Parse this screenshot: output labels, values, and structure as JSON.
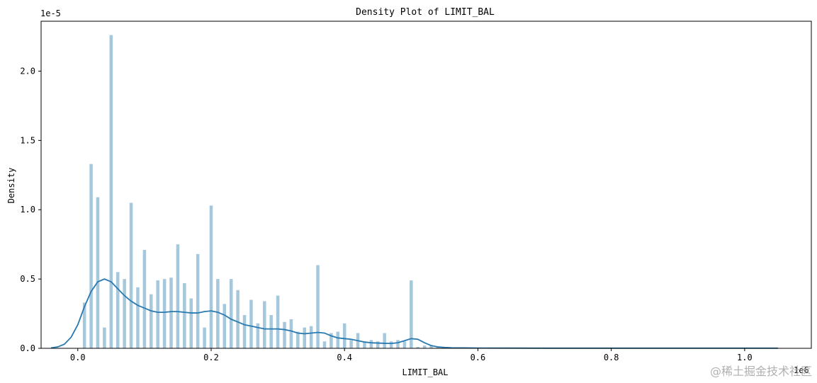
{
  "chart_data": {
    "type": "bar",
    "title": "Density Plot of LIMIT_BAL",
    "xlabel": "LIMIT_BAL",
    "ylabel": "Density",
    "x_scale_label": "1e6",
    "y_scale_label": "1e-5",
    "xlim": [
      -0.055,
      1.1
    ],
    "ylim": [
      0,
      2.36
    ],
    "xticks": [
      0.0,
      0.2,
      0.4,
      0.6,
      0.8,
      1.0
    ],
    "xtick_labels": [
      "0.0",
      "0.2",
      "0.4",
      "0.6",
      "0.8",
      "1.0"
    ],
    "yticks": [
      0.0,
      0.5,
      1.0,
      1.5,
      2.0
    ],
    "ytick_labels": [
      "0.0",
      "0.5",
      "1.0",
      "1.5",
      "2.0"
    ],
    "grid": false,
    "legend": "none",
    "bar_color": "#a6c8dc",
    "line_color": "#2a7ab0",
    "histogram": {
      "bin_width": 0.0048,
      "bins": [
        [
          0.01,
          0.33
        ],
        [
          0.02,
          1.33
        ],
        [
          0.03,
          1.09
        ],
        [
          0.04,
          0.15
        ],
        [
          0.05,
          2.26
        ],
        [
          0.06,
          0.55
        ],
        [
          0.07,
          0.5
        ],
        [
          0.08,
          1.05
        ],
        [
          0.09,
          0.44
        ],
        [
          0.1,
          0.71
        ],
        [
          0.11,
          0.39
        ],
        [
          0.12,
          0.49
        ],
        [
          0.13,
          0.5
        ],
        [
          0.14,
          0.51
        ],
        [
          0.15,
          0.75
        ],
        [
          0.16,
          0.47
        ],
        [
          0.17,
          0.36
        ],
        [
          0.18,
          0.68
        ],
        [
          0.19,
          0.15
        ],
        [
          0.2,
          1.03
        ],
        [
          0.21,
          0.5
        ],
        [
          0.22,
          0.32
        ],
        [
          0.23,
          0.5
        ],
        [
          0.24,
          0.42
        ],
        [
          0.25,
          0.24
        ],
        [
          0.26,
          0.35
        ],
        [
          0.27,
          0.18
        ],
        [
          0.28,
          0.34
        ],
        [
          0.29,
          0.24
        ],
        [
          0.3,
          0.38
        ],
        [
          0.31,
          0.19
        ],
        [
          0.32,
          0.21
        ],
        [
          0.33,
          0.12
        ],
        [
          0.34,
          0.15
        ],
        [
          0.35,
          0.16
        ],
        [
          0.36,
          0.6
        ],
        [
          0.37,
          0.05
        ],
        [
          0.38,
          0.11
        ],
        [
          0.39,
          0.12
        ],
        [
          0.4,
          0.18
        ],
        [
          0.41,
          0.06
        ],
        [
          0.42,
          0.11
        ],
        [
          0.43,
          0.05
        ],
        [
          0.44,
          0.06
        ],
        [
          0.45,
          0.05
        ],
        [
          0.46,
          0.11
        ],
        [
          0.47,
          0.05
        ],
        [
          0.48,
          0.06
        ],
        [
          0.49,
          0.05
        ],
        [
          0.5,
          0.49
        ],
        [
          0.51,
          0.01
        ],
        [
          0.52,
          0.02
        ],
        [
          0.53,
          0.02
        ],
        [
          0.54,
          0.01
        ],
        [
          0.55,
          0.01
        ],
        [
          0.56,
          0.005
        ],
        [
          0.57,
          0.005
        ],
        [
          0.58,
          0.005
        ],
        [
          0.6,
          0.003
        ],
        [
          0.62,
          0.002
        ]
      ]
    },
    "kde": {
      "x": [
        -0.04,
        -0.03,
        -0.02,
        -0.01,
        0.0,
        0.01,
        0.02,
        0.03,
        0.04,
        0.05,
        0.06,
        0.07,
        0.08,
        0.09,
        0.1,
        0.11,
        0.12,
        0.13,
        0.14,
        0.15,
        0.16,
        0.17,
        0.18,
        0.19,
        0.2,
        0.21,
        0.22,
        0.23,
        0.24,
        0.25,
        0.26,
        0.27,
        0.28,
        0.29,
        0.3,
        0.31,
        0.32,
        0.33,
        0.34,
        0.35,
        0.36,
        0.37,
        0.38,
        0.39,
        0.4,
        0.41,
        0.42,
        0.43,
        0.44,
        0.45,
        0.46,
        0.47,
        0.48,
        0.49,
        0.5,
        0.51,
        0.52,
        0.53,
        0.54,
        0.55,
        0.56,
        0.58,
        0.6,
        0.65,
        0.7,
        0.8,
        0.9,
        1.0,
        1.05
      ],
      "y": [
        0.003,
        0.01,
        0.03,
        0.08,
        0.17,
        0.3,
        0.41,
        0.48,
        0.5,
        0.48,
        0.43,
        0.38,
        0.34,
        0.31,
        0.29,
        0.27,
        0.26,
        0.26,
        0.265,
        0.265,
        0.26,
        0.255,
        0.255,
        0.265,
        0.27,
        0.26,
        0.24,
        0.21,
        0.19,
        0.17,
        0.16,
        0.15,
        0.14,
        0.14,
        0.14,
        0.135,
        0.125,
        0.11,
        0.105,
        0.11,
        0.115,
        0.11,
        0.09,
        0.075,
        0.07,
        0.065,
        0.055,
        0.045,
        0.04,
        0.038,
        0.036,
        0.035,
        0.04,
        0.055,
        0.07,
        0.065,
        0.04,
        0.02,
        0.01,
        0.006,
        0.004,
        0.003,
        0.002,
        0.0015,
        0.001,
        0.001,
        0.001,
        0.001,
        0.001
      ]
    }
  },
  "watermark": "@稀土掘金技术社区"
}
